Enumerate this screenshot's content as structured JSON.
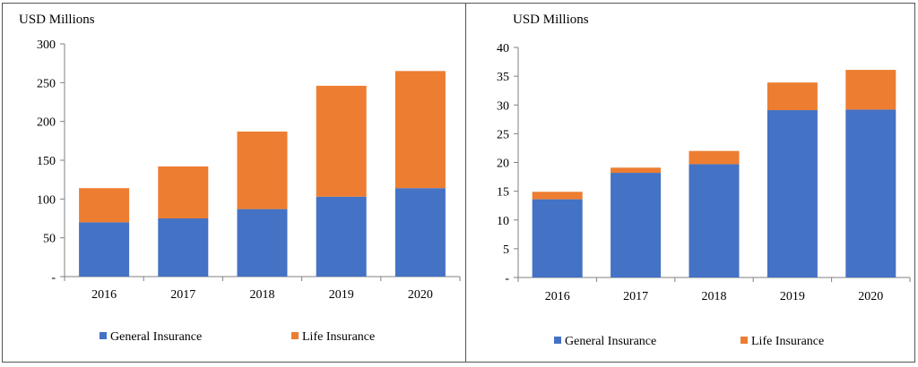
{
  "chart_data": [
    {
      "type": "bar",
      "stacked": true,
      "ylabel": "USD Millions",
      "categories": [
        "2016",
        "2017",
        "2018",
        "2019",
        "2020"
      ],
      "ylim": [
        0,
        300
      ],
      "yticks": [
        0,
        50,
        100,
        150,
        200,
        250,
        300
      ],
      "ytick_labels": [
        "-",
        "50",
        "100",
        "150",
        "200",
        "250",
        "300"
      ],
      "series": [
        {
          "name": "General Insurance",
          "color": "#4472C4",
          "values": [
            70,
            75,
            87,
            103,
            114
          ]
        },
        {
          "name": "Life Insurance",
          "color": "#ED7D31",
          "values": [
            44,
            67,
            100,
            143,
            151
          ]
        }
      ],
      "legend_position": "bottom",
      "grid": false
    },
    {
      "type": "bar",
      "stacked": true,
      "ylabel": "USD Millions",
      "categories": [
        "2016",
        "2017",
        "2018",
        "2019",
        "2020"
      ],
      "ylim": [
        0,
        40
      ],
      "yticks": [
        0,
        5,
        10,
        15,
        20,
        25,
        30,
        35,
        40
      ],
      "ytick_labels": [
        "-",
        "5",
        "10",
        "15",
        "20",
        "25",
        "30",
        "35",
        "40"
      ],
      "series": [
        {
          "name": "General Insurance",
          "color": "#4472C4",
          "values": [
            13.6,
            18.2,
            19.7,
            29.1,
            29.2
          ]
        },
        {
          "name": "Life Insurance",
          "color": "#ED7D31",
          "values": [
            1.3,
            0.9,
            2.3,
            4.8,
            6.9
          ]
        }
      ],
      "legend_position": "bottom",
      "grid": false
    }
  ]
}
